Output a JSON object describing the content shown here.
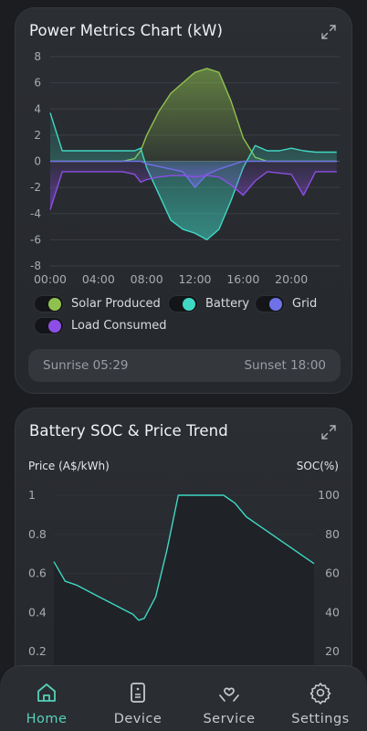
{
  "power_card": {
    "title": "Power Metrics Chart (kW)",
    "expand_icon": "expand-icon",
    "legend": [
      {
        "label": "Solar Produced",
        "color": "#8fc14e"
      },
      {
        "label": "Battery",
        "color": "#3fd8c4"
      },
      {
        "label": "Grid",
        "color": "#6f72e6"
      },
      {
        "label": "Load Consumed",
        "color": "#8d4ee6"
      }
    ],
    "sunrise": "Sunrise 05:29",
    "sunset": "Sunset 18:00"
  },
  "soc_card": {
    "title": "Battery SOC & Price Trend",
    "expand_icon": "expand-icon",
    "left_axis_title": "Price (A$/kWh)",
    "right_axis_title": "SOC(%)"
  },
  "chart_data": [
    {
      "type": "line",
      "title": "Power Metrics Chart (kW)",
      "xlabel": "",
      "ylabel": "",
      "ylim": [
        -8,
        8
      ],
      "yticks": [
        "8",
        "6",
        "4",
        "2",
        "0",
        "-2",
        "-4",
        "-6",
        "-8"
      ],
      "xticks": [
        "00:00",
        "04:00",
        "08:00",
        "12:00",
        "16:00",
        "20:00"
      ],
      "x": [
        "00:00",
        "01:00",
        "02:00",
        "03:00",
        "04:00",
        "05:00",
        "06:00",
        "07:00",
        "07:30",
        "08:00",
        "09:00",
        "10:00",
        "11:00",
        "12:00",
        "13:00",
        "14:00",
        "15:00",
        "16:00",
        "17:00",
        "18:00",
        "19:00",
        "20:00",
        "21:00",
        "22:00",
        "23:00"
      ],
      "series": [
        {
          "name": "Solar Produced",
          "color": "#8fc14e",
          "values": [
            0,
            0,
            0,
            0,
            0,
            0,
            0,
            0.2,
            0.8,
            2.0,
            3.8,
            5.2,
            6.0,
            6.8,
            7.1,
            6.8,
            4.6,
            1.8,
            0.3,
            0,
            0,
            0,
            0,
            0,
            0
          ]
        },
        {
          "name": "Battery",
          "color": "#3fd8c4",
          "values": [
            3.7,
            0.8,
            0.8,
            0.8,
            0.8,
            0.8,
            0.8,
            0.8,
            1.0,
            -0.5,
            -2.5,
            -4.5,
            -5.2,
            -5.5,
            -6.0,
            -5.2,
            -3.0,
            -0.5,
            1.2,
            0.8,
            0.8,
            1.0,
            0.8,
            0.7,
            0.7
          ]
        },
        {
          "name": "Grid",
          "color": "#6f72e6",
          "values": [
            0,
            0,
            0,
            0,
            0,
            0,
            0,
            0,
            0,
            -0.2,
            -0.4,
            -0.6,
            -0.8,
            -2.0,
            -1.0,
            -0.6,
            -0.3,
            0,
            0,
            0,
            0,
            0,
            0,
            0,
            0
          ]
        },
        {
          "name": "Load Consumed",
          "color": "#8d4ee6",
          "values": [
            -3.7,
            -0.8,
            -0.8,
            -0.8,
            -0.8,
            -0.8,
            -0.8,
            -1.0,
            -1.6,
            -1.4,
            -1.2,
            -1.1,
            -1.1,
            -1.2,
            -1.1,
            -1.2,
            -1.8,
            -2.6,
            -1.5,
            -0.8,
            -0.9,
            -1.0,
            -2.6,
            -0.8,
            -0.8
          ]
        }
      ]
    },
    {
      "type": "line",
      "title": "Battery SOC & Price Trend",
      "left_axis_title": "Price (A$/kWh)",
      "right_axis_title": "SOC(%)",
      "ylim_left": [
        0.2,
        1
      ],
      "ylim_right": [
        20,
        100
      ],
      "yticks_left": [
        "1",
        "0.8",
        "0.6",
        "0.4",
        "0.2"
      ],
      "yticks_right": [
        "100",
        "80",
        "60",
        "40",
        "20"
      ],
      "series": [
        {
          "name": "SOC",
          "color": "#3fd8c4",
          "x": [
            0,
            1,
            2,
            3,
            4,
            5,
            6,
            7,
            7.5,
            8,
            9,
            10,
            11,
            12,
            13,
            14,
            15,
            16,
            17,
            18,
            19,
            20,
            21,
            22,
            23
          ],
          "values": [
            66,
            56,
            54,
            51,
            48,
            45,
            42,
            39,
            36,
            37,
            48,
            72,
            100,
            100,
            100,
            100,
            100,
            96,
            89,
            85,
            81,
            77,
            73,
            69,
            65
          ]
        }
      ]
    }
  ],
  "nav": [
    {
      "label": "Home",
      "icon": "home-icon",
      "active": true
    },
    {
      "label": "Device",
      "icon": "device-icon",
      "active": false
    },
    {
      "label": "Service",
      "icon": "service-icon",
      "active": false
    },
    {
      "label": "Settings",
      "icon": "settings-icon",
      "active": false
    }
  ]
}
